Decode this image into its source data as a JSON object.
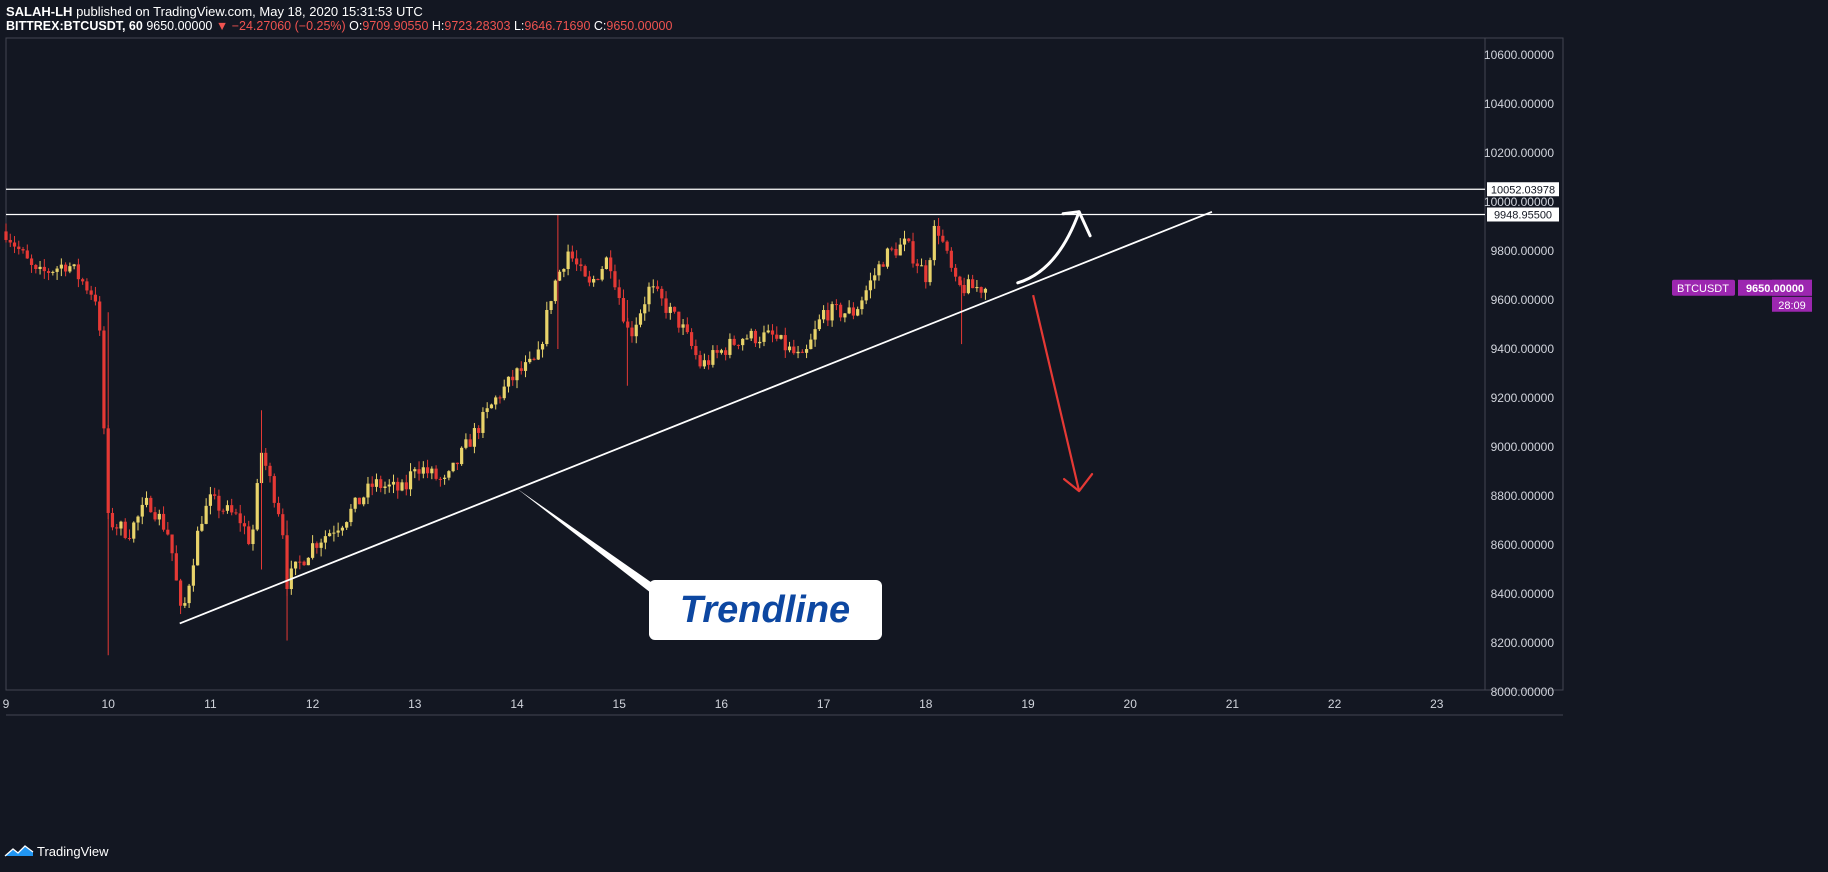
{
  "header": {
    "publisher": "SALAH-LH",
    "published_text": "published on TradingView.com, May 18, 2020 15:31:53 UTC",
    "symbol": "BITTREX:BTCUSDT, 60",
    "last": "9650.00000",
    "change": "−24.27060 (−0.25%)",
    "o_label": "O:",
    "o": "9709.90550",
    "h_label": "H:",
    "h": "9723.28303",
    "l_label": "L:",
    "l": "9646.71690",
    "c_label": "C:",
    "c": "9650.00000"
  },
  "footer": {
    "brand": "TradingView"
  },
  "colors": {
    "background": "#131722",
    "up": "#e8d36a",
    "down": "#e53935",
    "accent": "#9c27b0",
    "arrow_down": "#e53935",
    "lines": "#ffffff"
  },
  "chart_data": {
    "type": "candlestick",
    "ylim": [
      8000,
      10700
    ],
    "y_ticks": [
      "10600.00000",
      "10400.00000",
      "10200.00000",
      "10000.00000",
      "9800.00000",
      "9600.00000",
      "9400.00000",
      "9200.00000",
      "9000.00000",
      "8800.00000",
      "8600.00000",
      "8400.00000",
      "8200.00000",
      "8000.00000"
    ],
    "x_ticks": [
      "9",
      "10",
      "11",
      "12",
      "13",
      "14",
      "15",
      "16",
      "17",
      "18",
      "19",
      "20",
      "21",
      "22",
      "23"
    ],
    "x_range_days": [
      9,
      23.4
    ],
    "horizontal_lines": [
      {
        "price": 10052.03978,
        "label": "10052.03978"
      },
      {
        "price": 9948.955,
        "label": "9948.95500"
      }
    ],
    "trendline": {
      "from": [
        10.7,
        8280
      ],
      "to": [
        20.8,
        9960
      ]
    },
    "annotation": {
      "text": "Trendline",
      "anchor": [
        14.0,
        8830
      ]
    },
    "up_arrow": {
      "from": [
        18.9,
        9670
      ],
      "to": [
        19.5,
        9960
      ]
    },
    "down_arrow": {
      "from": [
        19.05,
        9620
      ],
      "to": [
        19.5,
        8820
      ]
    },
    "price_label": {
      "symbol": "BTCUSDT",
      "price": "9650.00000",
      "countdown": "28:09"
    },
    "anchors": [
      [
        9.0,
        9880
      ],
      [
        9.3,
        9700
      ],
      [
        9.6,
        9750
      ],
      [
        9.9,
        9600
      ],
      [
        10.0,
        8700
      ],
      [
        10.2,
        8650
      ],
      [
        10.4,
        8780
      ],
      [
        10.6,
        8640
      ],
      [
        10.72,
        8290
      ],
      [
        10.9,
        8700
      ],
      [
        11.0,
        8780
      ],
      [
        11.3,
        8700
      ],
      [
        11.4,
        8600
      ],
      [
        11.5,
        8980
      ],
      [
        11.7,
        8700
      ],
      [
        11.75,
        8450
      ],
      [
        12.0,
        8600
      ],
      [
        12.3,
        8700
      ],
      [
        12.6,
        8850
      ],
      [
        12.9,
        8820
      ],
      [
        13.0,
        8930
      ],
      [
        13.3,
        8850
      ],
      [
        13.5,
        9000
      ],
      [
        13.8,
        9200
      ],
      [
        14.0,
        9300
      ],
      [
        14.2,
        9350
      ],
      [
        14.35,
        9650
      ],
      [
        14.5,
        9800
      ],
      [
        14.7,
        9650
      ],
      [
        14.9,
        9780
      ],
      [
        15.1,
        9450
      ],
      [
        15.3,
        9650
      ],
      [
        15.6,
        9500
      ],
      [
        15.8,
        9330
      ],
      [
        16.2,
        9450
      ],
      [
        16.5,
        9450
      ],
      [
        16.8,
        9350
      ],
      [
        17.0,
        9550
      ],
      [
        17.3,
        9550
      ],
      [
        17.6,
        9780
      ],
      [
        17.8,
        9830
      ],
      [
        18.0,
        9700
      ],
      [
        18.1,
        9920
      ],
      [
        18.3,
        9650
      ],
      [
        18.6,
        9650
      ]
    ]
  }
}
